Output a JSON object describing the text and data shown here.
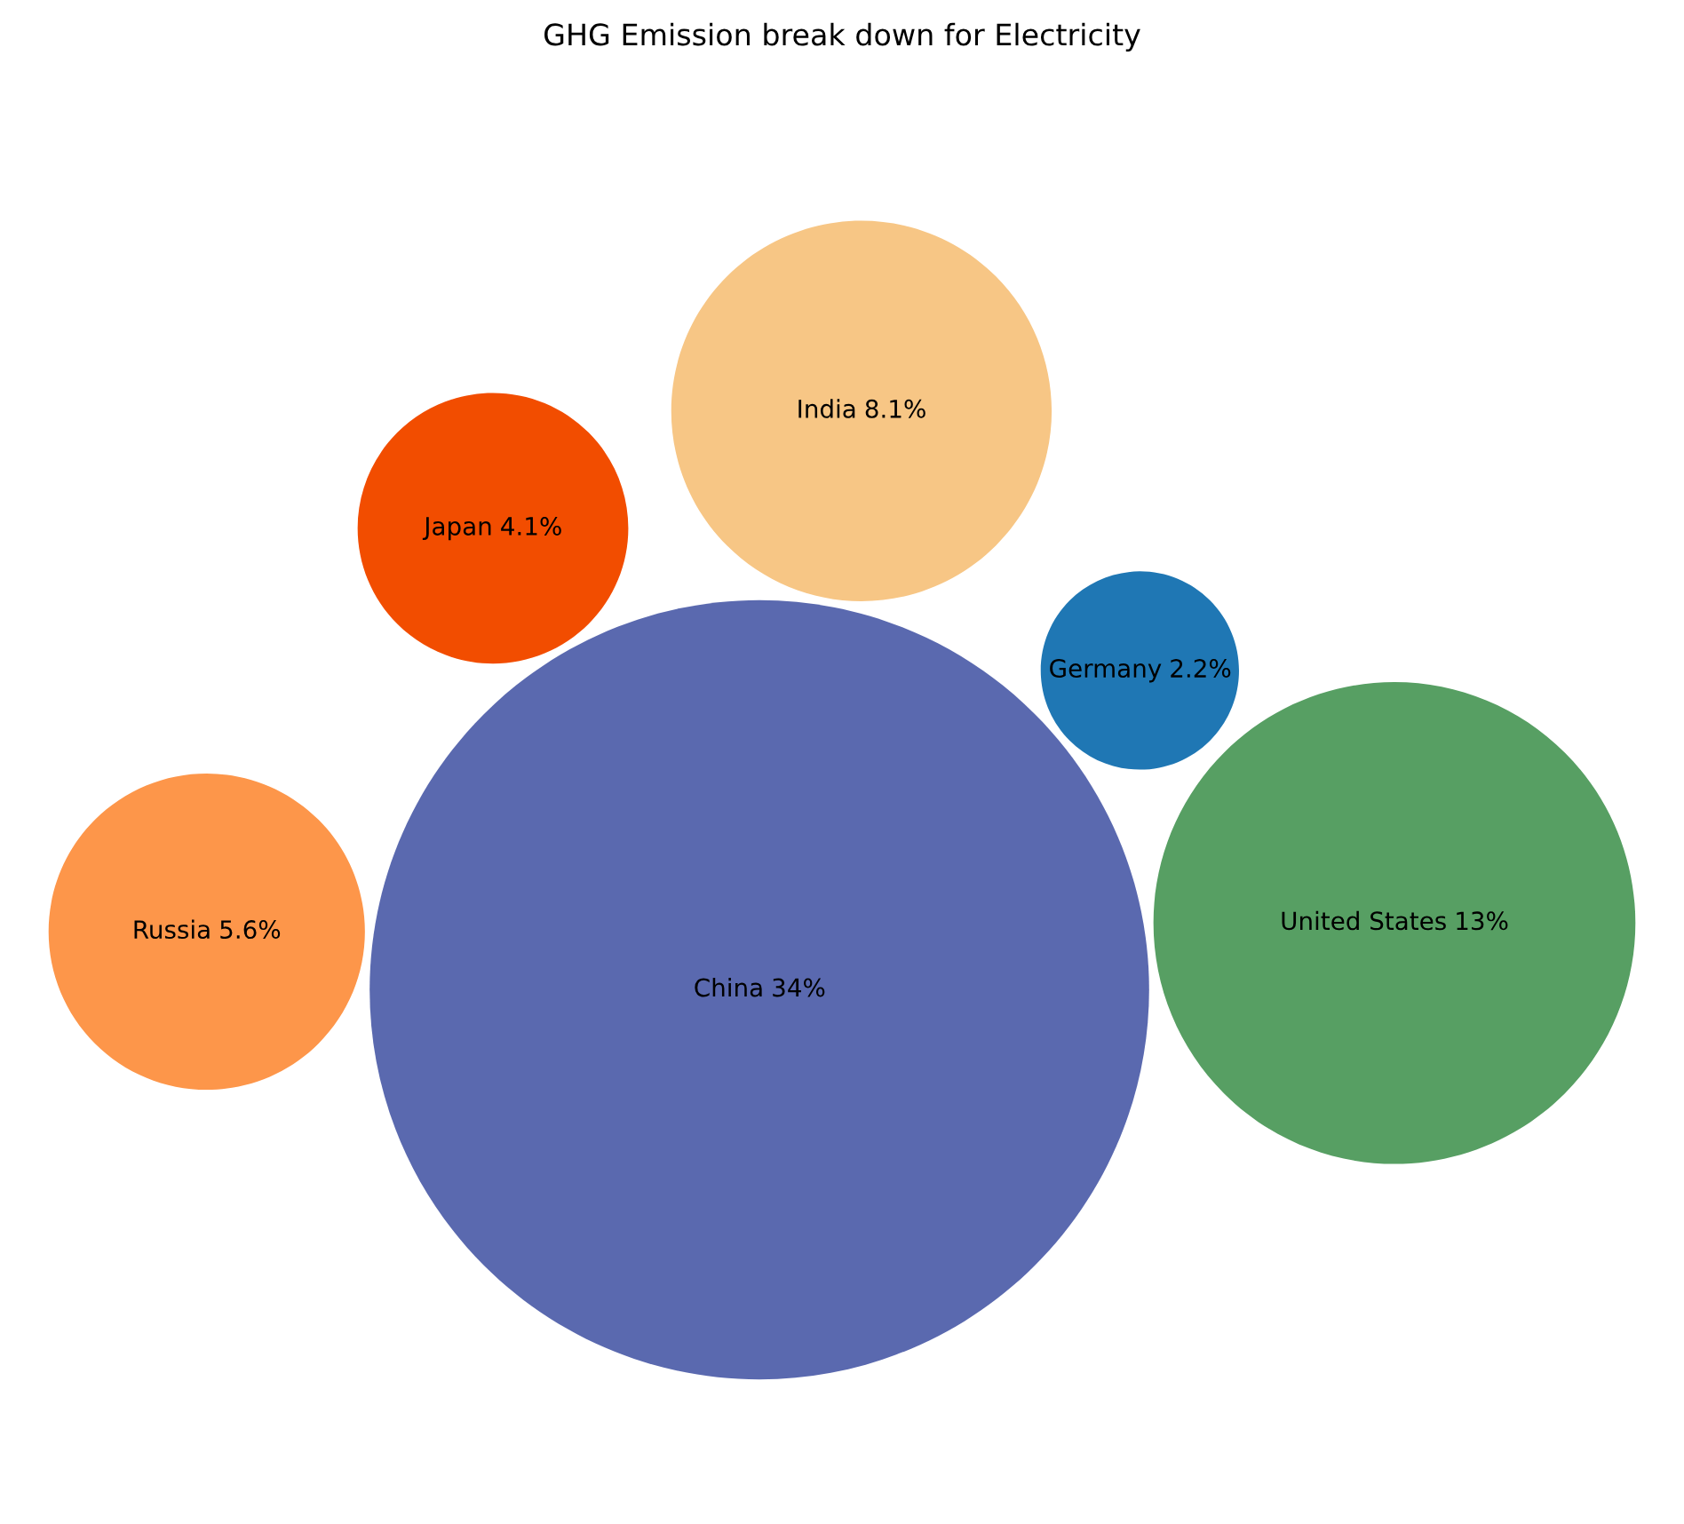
{
  "chart_data": {
    "type": "other",
    "title": "GHG Emission break down for Electricity",
    "categories": [
      "China",
      "United States",
      "India",
      "Russia",
      "Japan",
      "Germany"
    ],
    "values": [
      34,
      13,
      8.1,
      5.6,
      4.1,
      2.2
    ],
    "value_labels": [
      "34%",
      "13%",
      "8.1%",
      "5.6%",
      "4.1%",
      "2.2%"
    ],
    "colors": [
      "#5a69af",
      "#579f63",
      "#f7c685",
      "#fd964a",
      "#f24d00",
      "#1f77b4"
    ]
  }
}
